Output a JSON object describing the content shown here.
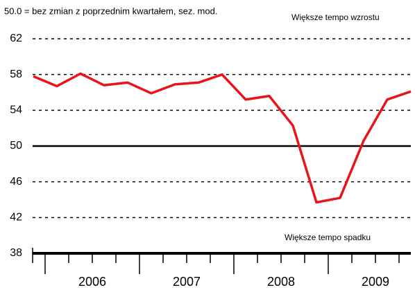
{
  "chart_data": {
    "type": "line",
    "subtitle": "50.0 = bez zmian z poprzednim kwartałem, sez. mod.",
    "annotations": [
      "Większe tempo wzrostu",
      "Większe tempo spadku"
    ],
    "categories": [
      null,
      null,
      null,
      null,
      null,
      null,
      null,
      null,
      null,
      null,
      null,
      null,
      null,
      null,
      null,
      null,
      null
    ],
    "year_labels": [
      "2006",
      "2007",
      "2008",
      "2009"
    ],
    "series": [
      {
        "color": "#e8141a",
        "values": [
          57.8,
          56.7,
          58.1,
          56.8,
          57.1,
          55.9,
          56.9,
          57.1,
          58.0,
          55.2,
          55.6,
          52.3,
          43.7,
          44.2,
          50.6,
          55.2,
          56.1
        ]
      }
    ],
    "ylim": [
      38,
      62
    ],
    "yticks": [
      38,
      42,
      46,
      50,
      54,
      58,
      62
    ],
    "reference_line": 50,
    "grid": true
  }
}
